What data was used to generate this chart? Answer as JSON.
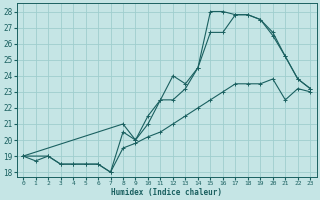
{
  "xlabel": "Humidex (Indice chaleur)",
  "xlim": [
    -0.5,
    23.5
  ],
  "ylim": [
    17.7,
    28.5
  ],
  "yticks": [
    18,
    19,
    20,
    21,
    22,
    23,
    24,
    25,
    26,
    27,
    28
  ],
  "xticks": [
    0,
    1,
    2,
    3,
    4,
    5,
    6,
    7,
    8,
    9,
    10,
    11,
    12,
    13,
    14,
    15,
    16,
    17,
    18,
    19,
    20,
    21,
    22,
    23
  ],
  "bg_color": "#c5e5e5",
  "grid_color": "#9fcece",
  "line_color": "#1a6060",
  "line1_x": [
    0,
    1,
    2,
    3,
    4,
    5,
    6,
    7,
    8,
    9,
    10,
    11,
    12,
    13,
    14,
    15,
    16,
    17,
    18,
    19,
    20,
    21,
    22,
    23
  ],
  "line1_y": [
    19.0,
    18.7,
    19.0,
    18.5,
    18.5,
    18.5,
    18.5,
    18.0,
    19.5,
    19.8,
    20.2,
    20.5,
    21.0,
    21.5,
    22.0,
    22.5,
    23.0,
    23.5,
    23.5,
    23.5,
    23.8,
    22.5,
    23.2,
    23.0
  ],
  "line2_x": [
    0,
    2,
    3,
    4,
    5,
    6,
    7,
    8,
    9,
    10,
    11,
    12,
    13,
    14,
    15,
    16,
    17,
    18,
    19,
    20,
    21,
    22,
    23
  ],
  "line2_y": [
    19.0,
    19.0,
    18.5,
    18.5,
    18.5,
    18.5,
    18.0,
    20.5,
    20.0,
    21.0,
    22.5,
    22.5,
    23.2,
    24.5,
    26.7,
    26.7,
    27.8,
    27.8,
    27.5,
    26.7,
    25.2,
    23.8,
    23.2
  ],
  "line3_x": [
    0,
    8,
    9,
    10,
    11,
    12,
    13,
    14,
    15,
    16,
    17,
    18,
    19,
    20,
    21,
    22,
    23
  ],
  "line3_y": [
    19.0,
    21.0,
    20.0,
    21.5,
    22.5,
    24.0,
    23.5,
    24.5,
    28.0,
    28.0,
    27.8,
    27.8,
    27.5,
    26.5,
    25.2,
    23.8,
    23.2
  ]
}
